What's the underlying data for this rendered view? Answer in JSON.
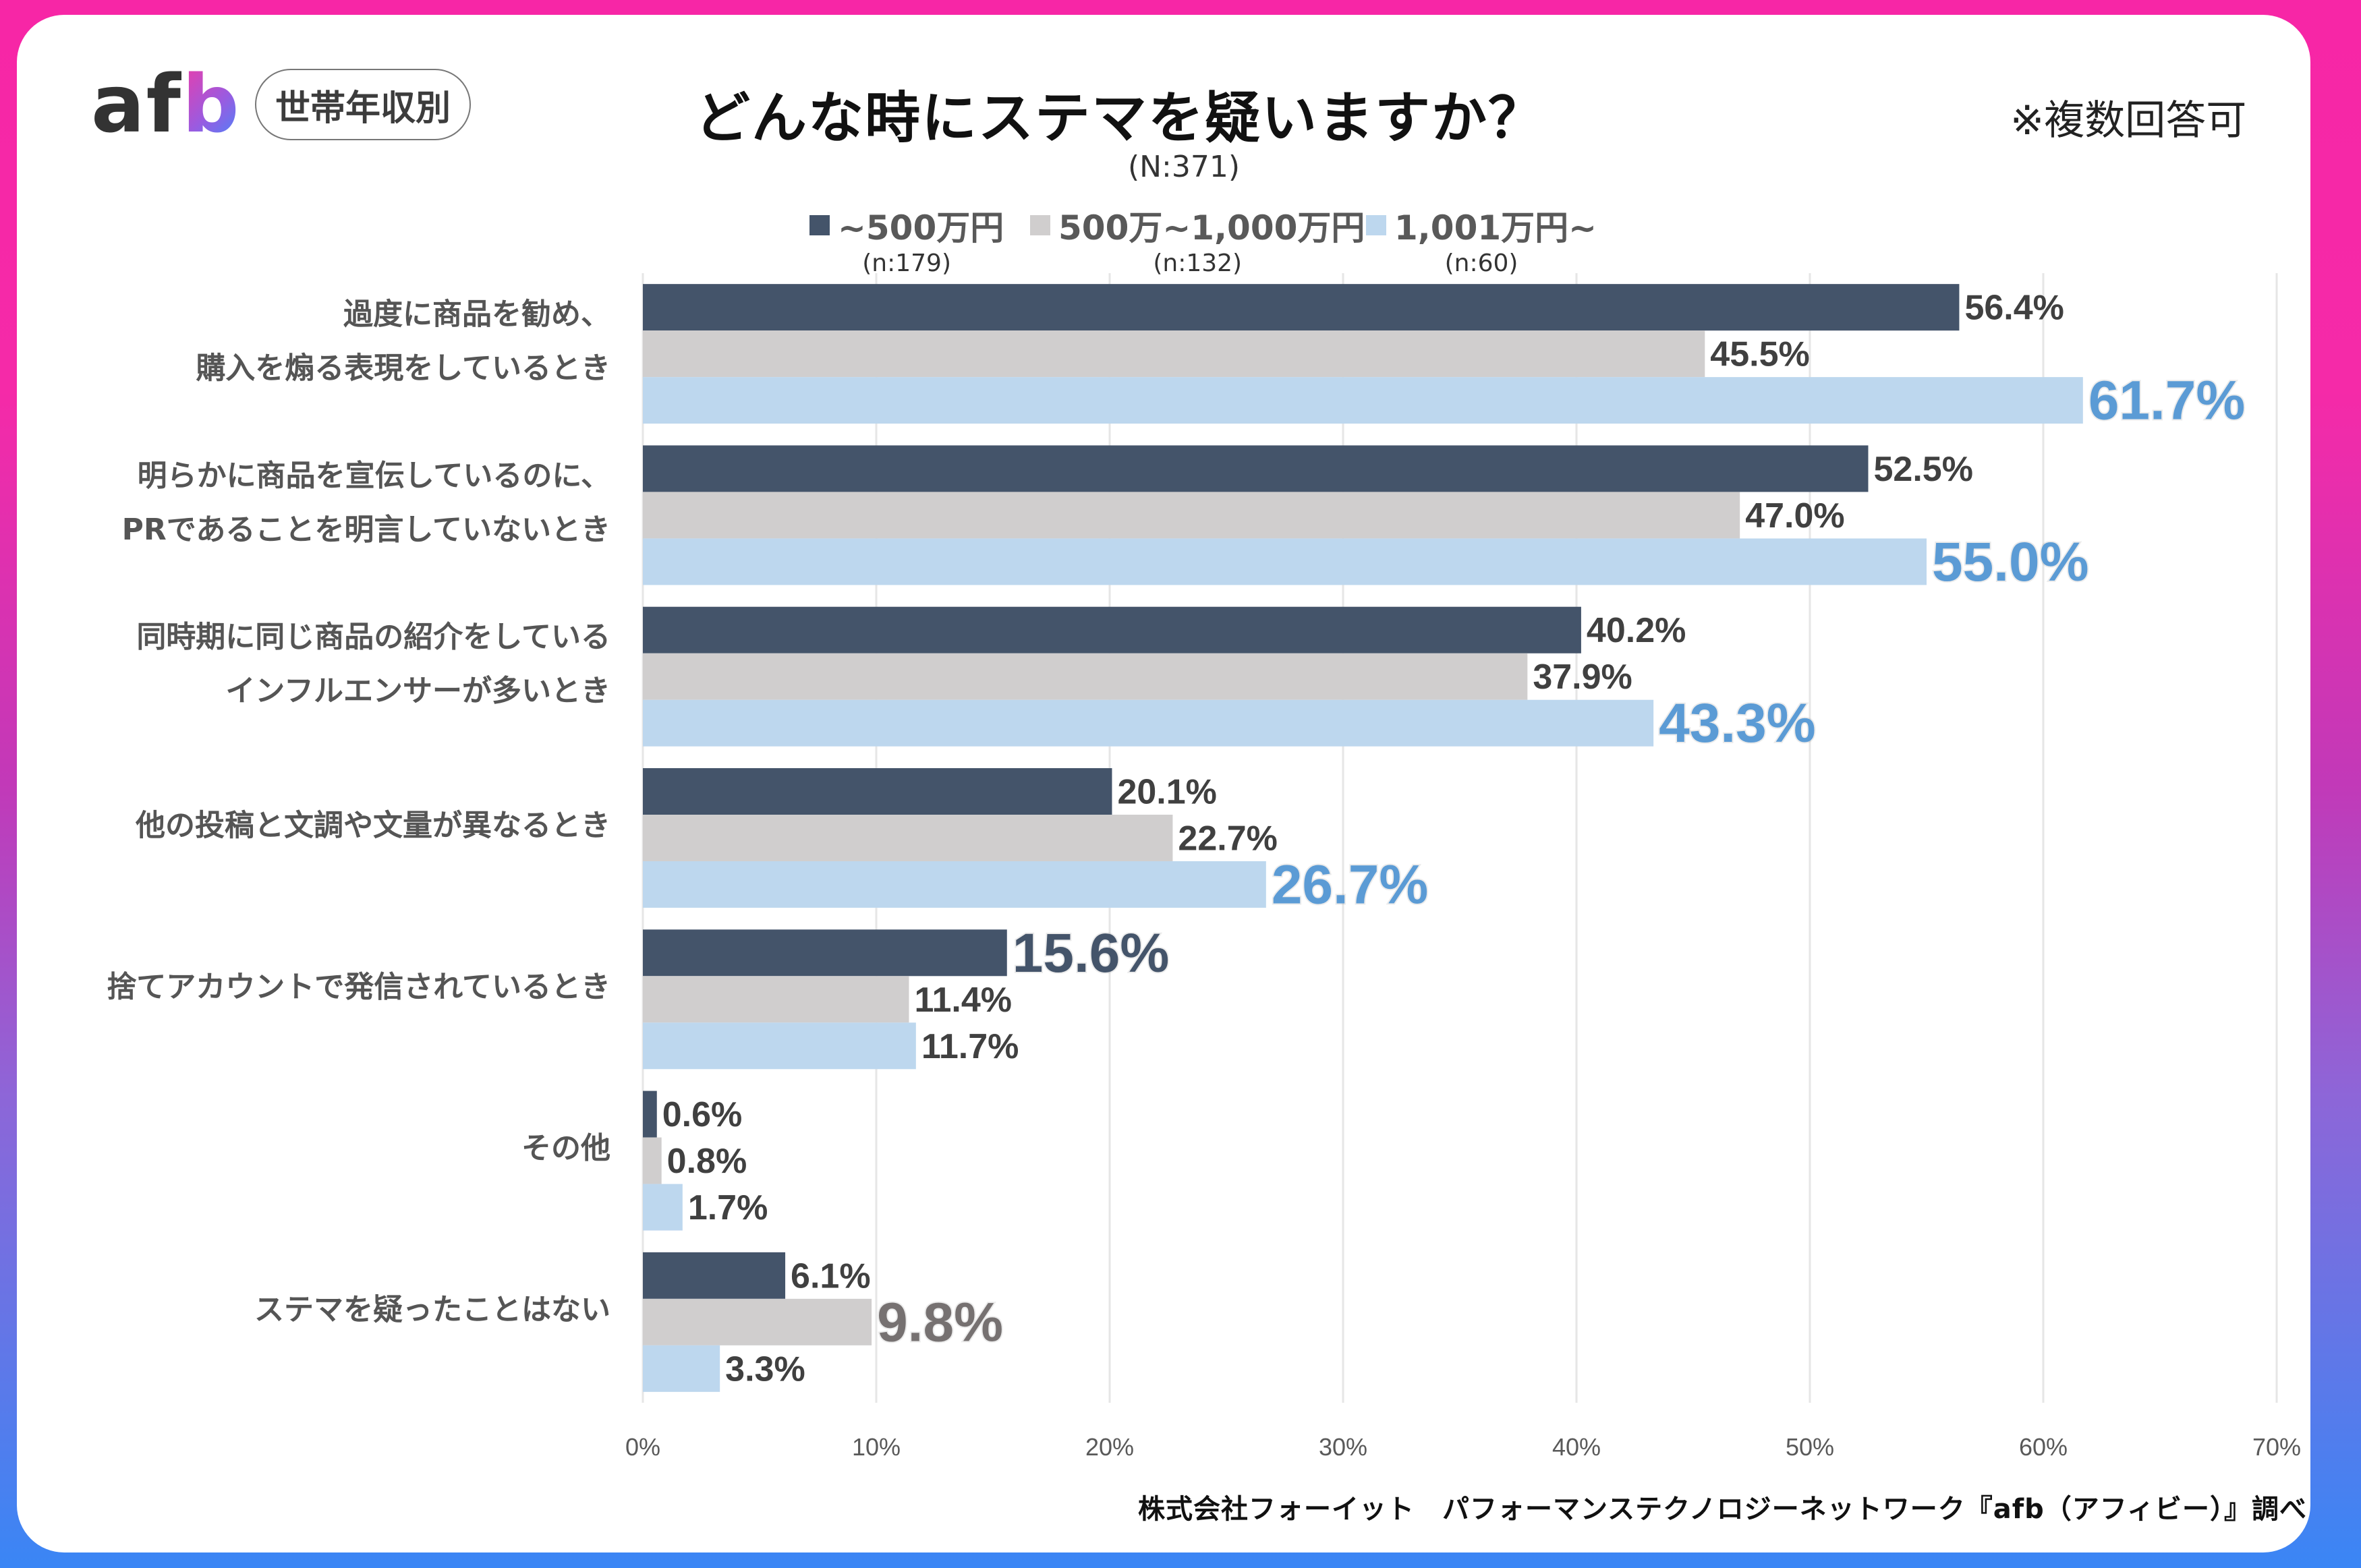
{
  "logo": {
    "text_af": "af",
    "text_b": "b"
  },
  "segment_badge": "世帯年収別",
  "note": "※複数回答可",
  "footer": "株式会社フォーイット　パフォーマンステクノロジーネットワーク『afb（アフィビー）』調べ",
  "chart_data": {
    "type": "bar",
    "orientation": "horizontal",
    "title": "どんな時にステマを疑いますか？",
    "subtitle": "(N:371)",
    "xlabel": "",
    "ylabel": "",
    "xlim": [
      0,
      70
    ],
    "ticks": [
      0,
      10,
      20,
      30,
      40,
      50,
      60,
      70
    ],
    "tick_labels": [
      "0%",
      "10%",
      "20%",
      "30%",
      "40%",
      "50%",
      "60%",
      "70%"
    ],
    "grid": true,
    "legend_position": "top",
    "categories": [
      [
        "過度に商品を勧め、",
        "購入を煽る表現をしているとき"
      ],
      [
        "明らかに商品を宣伝しているのに、",
        "PRであることを明言していないとき"
      ],
      [
        "同時期に同じ商品の紹介をしている",
        "インフルエンサーが多いとき"
      ],
      [
        "他の投稿と文調や文量が異なるとき"
      ],
      [
        "捨てアカウントで発信されているとき"
      ],
      [
        "その他"
      ],
      [
        "ステマを疑ったことはない"
      ]
    ],
    "series": [
      {
        "name": "~500万円",
        "n": "(n:179)",
        "color": "#44546a",
        "highlight_color": "#44546a",
        "values": [
          56.4,
          52.5,
          40.2,
          20.1,
          15.6,
          0.6,
          6.1
        ],
        "labels": [
          "56.4%",
          "52.5%",
          "40.2%",
          "20.1%",
          "15.6%",
          "0.6%",
          "6.1%"
        ],
        "highlight": [
          false,
          false,
          false,
          false,
          true,
          false,
          false
        ]
      },
      {
        "name": "500万~1,000万円",
        "n": "(n:132)",
        "color": "#d0cece",
        "highlight_color": "#767171",
        "values": [
          45.5,
          47.0,
          37.9,
          22.7,
          11.4,
          0.8,
          9.8
        ],
        "labels": [
          "45.5%",
          "47.0%",
          "37.9%",
          "22.7%",
          "11.4%",
          "0.8%",
          "9.8%"
        ],
        "highlight": [
          false,
          false,
          false,
          false,
          false,
          false,
          true
        ]
      },
      {
        "name": "1,001万円~",
        "n": "(n:60)",
        "color": "#bdd7ee",
        "highlight_color": "#5b9bd5",
        "values": [
          61.7,
          55.0,
          43.3,
          26.7,
          11.7,
          1.7,
          3.3
        ],
        "labels": [
          "61.7%",
          "55.0%",
          "43.3%",
          "26.7%",
          "11.7%",
          "1.7%",
          "3.3%"
        ],
        "highlight": [
          true,
          true,
          true,
          true,
          false,
          false,
          false
        ]
      }
    ]
  }
}
